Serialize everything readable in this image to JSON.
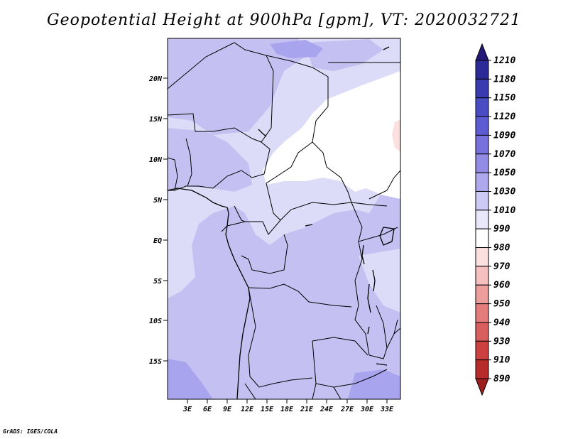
{
  "title": "Geopotential Height at 900hPa [gpm], VT: 2020032721",
  "credit": "GrADS: IGES/COLA",
  "lat_labels": [
    "20N",
    "15N",
    "10N",
    "5N",
    "EQ",
    "5S",
    "10S",
    "15S"
  ],
  "lon_labels": [
    "3E",
    "6E",
    "9E",
    "12E",
    "15E",
    "18E",
    "21E",
    "24E",
    "27E",
    "30E",
    "33E"
  ],
  "colorbar": {
    "levels": [
      "1210",
      "1180",
      "1150",
      "1120",
      "1090",
      "1070",
      "1050",
      "1030",
      "1010",
      "990",
      "980",
      "970",
      "960",
      "950",
      "940",
      "930",
      "910",
      "890"
    ],
    "colors": [
      "#241878",
      "#2b2a98",
      "#3a3bb0",
      "#4a4cc4",
      "#5e5cd2",
      "#7771dd",
      "#928ce6",
      "#aea8ee",
      "#cdcaf5",
      "#e9e8fb",
      "#ffffff",
      "#fce0e0",
      "#f6c0c0",
      "#ee9d9d",
      "#e47c7c",
      "#d95e5e",
      "#cc4040",
      "#b82b2b",
      "#9e1e1e"
    ]
  },
  "map_colors": {
    "h1010_1030": "#dcdcf8",
    "h1030_1050": "#c4c0f2",
    "h1050_1070": "#a9a4ee",
    "below_1010": "#ffffff",
    "warm_patch": "#fce0e0"
  }
}
